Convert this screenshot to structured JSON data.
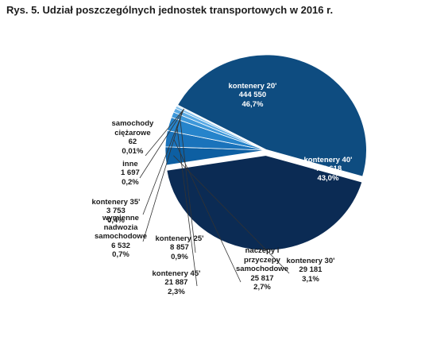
{
  "title": "Rys. 5. Udział poszczególnych jednostek transportowych w 2016 r.",
  "chart_data": {
    "type": "pie",
    "title": "Rys. 5. Udział poszczególnych jednostek transportowych w 2016 r.",
    "slices": [
      {
        "name": "kontenery 20'",
        "value_text": "444 550",
        "percent_text": "46,7%",
        "value": 444550,
        "percent": 46.7,
        "color": "#0e4c80"
      },
      {
        "name": "kontenery 40'",
        "value_text": "408 618",
        "percent_text": "43,0%",
        "value": 408618,
        "percent": 43.0,
        "color": "#0b2b54"
      },
      {
        "name": "kontenery 30'",
        "value_text": "29 181",
        "percent_text": "3,1%",
        "value": 29181,
        "percent": 3.1,
        "color": "#0d5fa2"
      },
      {
        "name": "naczepy i przyczepy samochodowe",
        "value_text": "25 817",
        "percent_text": "2,7%",
        "value": 25817,
        "percent": 2.7,
        "color": "#1a73bb"
      },
      {
        "name": "kontenery 45'",
        "value_text": "21 887",
        "percent_text": "2,3%",
        "value": 21887,
        "percent": 2.3,
        "color": "#2684cb"
      },
      {
        "name": "kontenery 25'",
        "value_text": "8 857",
        "percent_text": "0,9%",
        "value": 8857,
        "percent": 0.9,
        "color": "#3e98da"
      },
      {
        "name": "wymienne nadwozia samochodowe",
        "value_text": "6 532",
        "percent_text": "0,7%",
        "value": 6532,
        "percent": 0.7,
        "color": "#5aaae4"
      },
      {
        "name": "kontenery 35'",
        "value_text": "3 753",
        "percent_text": "0,4%",
        "value": 3753,
        "percent": 0.4,
        "color": "#78bcec"
      },
      {
        "name": "inne",
        "value_text": "1 697",
        "percent_text": "0,2%",
        "value": 1697,
        "percent": 0.2,
        "color": "#9acdf2"
      },
      {
        "name": "samochody ciężarowe",
        "value_text": "62",
        "percent_text": "0,01%",
        "value": 62,
        "percent": 0.01,
        "color": "#b8dbf6"
      }
    ]
  }
}
